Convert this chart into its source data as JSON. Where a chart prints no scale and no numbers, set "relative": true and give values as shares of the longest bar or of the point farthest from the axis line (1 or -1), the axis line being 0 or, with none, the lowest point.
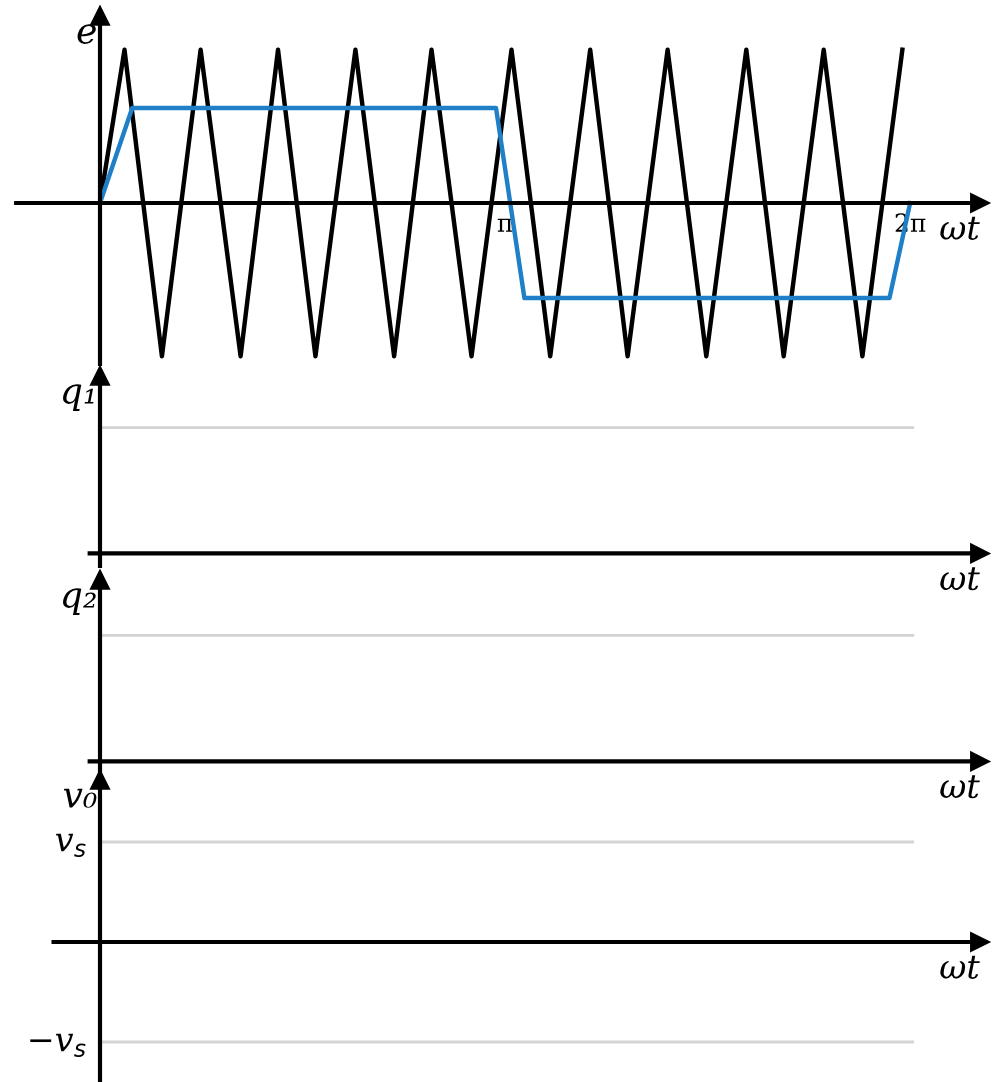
{
  "chart_data": [
    {
      "type": "line",
      "ylabel": "e",
      "xlabel": "ωt",
      "relative": true,
      "xlim": [
        -0.65,
        6.82
      ],
      "xticks": [
        {
          "value": 3.14,
          "label": "π"
        },
        {
          "value": 6.28,
          "label": "2π"
        }
      ],
      "grid": false,
      "legend": false,
      "series": [
        {
          "color": "#000000",
          "x": [
            0,
            0.19,
            0.48,
            0.78,
            1.09,
            1.38,
            1.67,
            1.98,
            2.28,
            2.57,
            2.88,
            3.19,
            3.49,
            3.8,
            4.09,
            4.4,
            4.7,
            5.01,
            5.3,
            5.61,
            5.91,
            6.22
          ],
          "values": [
            0,
            1,
            -1,
            1,
            -1,
            1,
            -1,
            1,
            -1,
            1,
            -1,
            1,
            -1,
            1,
            -1,
            1,
            -1,
            1,
            -1,
            1,
            -1,
            1
          ]
        },
        {
          "color": "#1f80c8",
          "x": [
            0,
            0.25,
            3.07,
            3.29,
            6.12,
            6.28
          ],
          "values": [
            0,
            0.62,
            0.62,
            -0.62,
            -0.62,
            0
          ]
        }
      ]
    },
    {
      "type": "other",
      "ylabel": "q₁",
      "xlabel": "ωt"
    },
    {
      "type": "other",
      "ylabel": "q₂",
      "xlabel": "ωt"
    },
    {
      "type": "other",
      "ylabel": "v₀",
      "xlabel": "ωt",
      "annotations": [
        "v$_{s}$",
        "−v$_{s}$"
      ]
    }
  ]
}
